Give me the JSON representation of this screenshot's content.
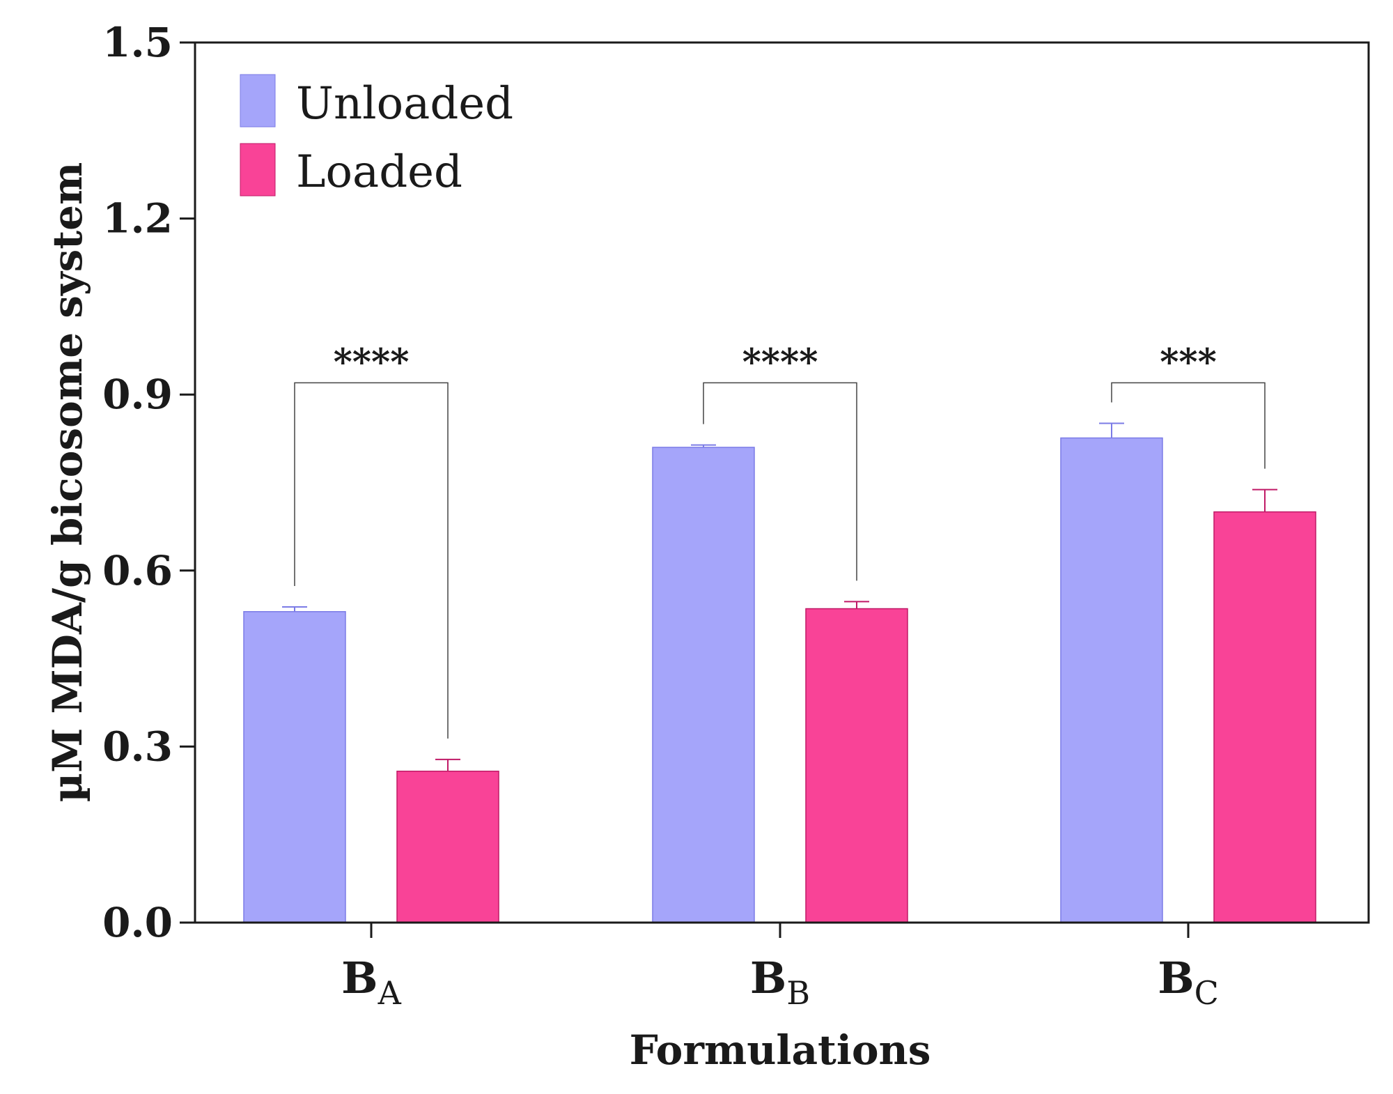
{
  "chart_data": {
    "type": "bar",
    "title": "",
    "xlabel": "Formulations",
    "ylabel": "µM MDA/g bicosome system",
    "ylim": [
      0,
      1.5
    ],
    "yticks": [
      "0.0",
      "0.3",
      "0.6",
      "0.9",
      "1.2",
      "1.5"
    ],
    "grid": false,
    "legend_position": "top-left",
    "categories": [
      {
        "main": "B",
        "sub": "A"
      },
      {
        "main": "B",
        "sub": "B"
      },
      {
        "main": "B",
        "sub": "C"
      }
    ],
    "series": [
      {
        "name": "Unloaded",
        "color": "#a5a5fa",
        "edge": "#7b7be6",
        "values": [
          0.53,
          0.81,
          0.826
        ],
        "errors": [
          0.008,
          0.004,
          0.025
        ]
      },
      {
        "name": "Loaded",
        "color": "#f94397",
        "edge": "#c01a67",
        "values": [
          0.258,
          0.535,
          0.7
        ],
        "errors": [
          0.02,
          0.012,
          0.038
        ]
      }
    ],
    "significance": [
      {
        "category_index": 0,
        "label": "****",
        "bracket_y": 0.92
      },
      {
        "category_index": 1,
        "label": "****",
        "bracket_y": 0.92
      },
      {
        "category_index": 2,
        "label": "***",
        "bracket_y": 0.92
      }
    ]
  }
}
